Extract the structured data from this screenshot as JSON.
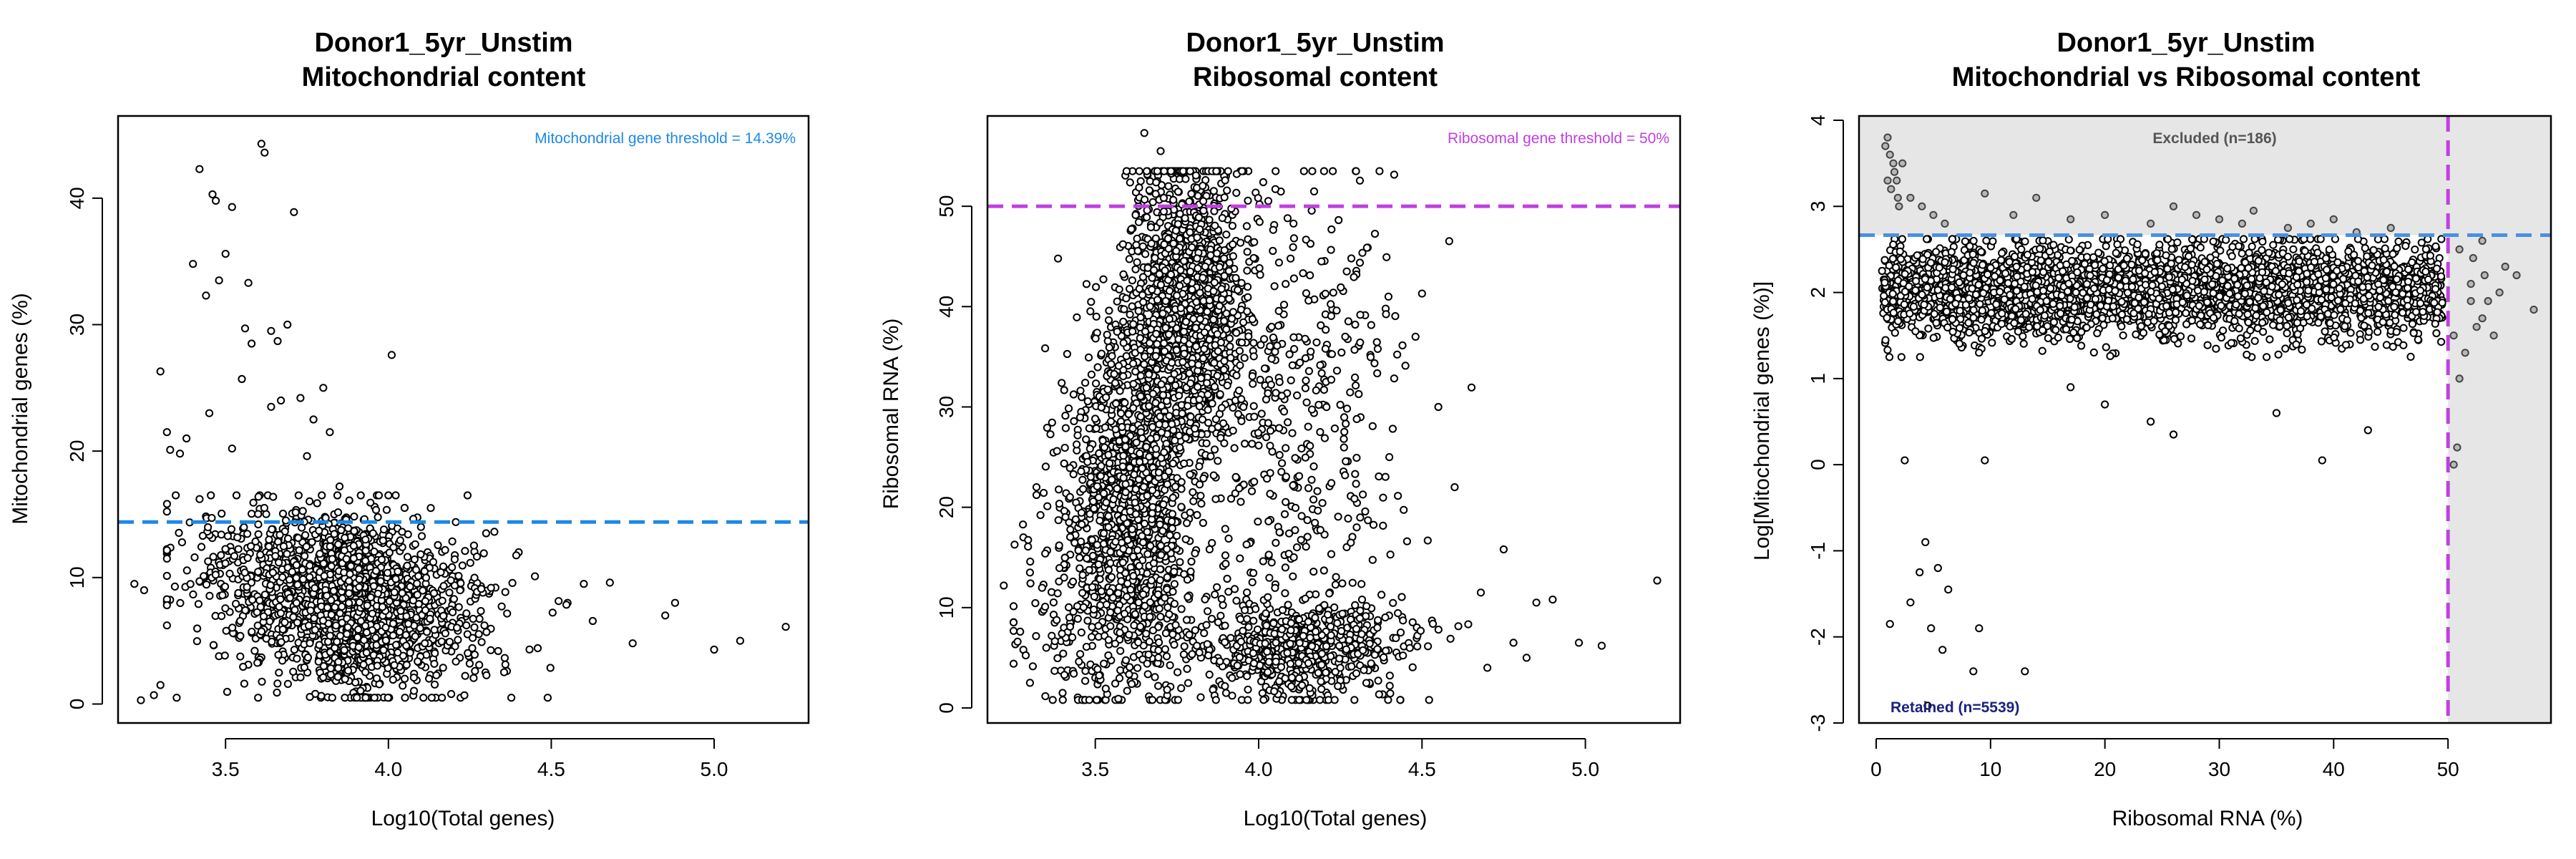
{
  "colors": {
    "mito_threshold": "#1E88E5",
    "ribo_threshold": "#C040E0",
    "combined_mito_threshold": "#4A90E2",
    "excluded_shade": "#e6e6e6",
    "retained_text": "#1a237e",
    "excluded_text": "#555555",
    "point": "#000000"
  },
  "chart_data": [
    {
      "type": "scatter",
      "title_line1": "Donor1_5yr_Unstim",
      "title_line2": "Mitochondrial content",
      "xlabel": "Log10(Total genes)",
      "ylabel": "Mitochondrial genes (%)",
      "xlim": [
        3.17,
        5.29
      ],
      "ylim": [
        -1.5,
        46.5
      ],
      "xticks": [
        3.5,
        4.0,
        4.5,
        5.0
      ],
      "xtick_labels": [
        "3.5",
        "4.0",
        "4.5",
        "5.0"
      ],
      "yticks": [
        0,
        10,
        20,
        30,
        40
      ],
      "ytick_labels": [
        "0",
        "10",
        "20",
        "30",
        "40"
      ],
      "threshold": {
        "axis": "y",
        "value": 14.39,
        "label": "Mitochondrial gene threshold = 14.39%"
      },
      "points": [
        [
          3.22,
          9.5
        ],
        [
          3.24,
          0.3
        ],
        [
          3.28,
          0.7
        ],
        [
          3.3,
          26.3
        ],
        [
          3.32,
          21.5
        ],
        [
          3.33,
          20.1
        ],
        [
          3.35,
          0.5
        ],
        [
          3.36,
          19.8
        ],
        [
          3.38,
          21.0
        ],
        [
          3.4,
          34.8
        ],
        [
          3.42,
          42.3
        ],
        [
          3.44,
          32.3
        ],
        [
          3.45,
          23.0
        ],
        [
          3.46,
          40.3
        ],
        [
          3.47,
          39.8
        ],
        [
          3.48,
          33.5
        ],
        [
          3.5,
          35.6
        ],
        [
          3.52,
          39.3
        ],
        [
          3.52,
          20.2
        ],
        [
          3.55,
          25.7
        ],
        [
          3.56,
          29.7
        ],
        [
          3.57,
          33.3
        ],
        [
          3.58,
          28.5
        ],
        [
          3.61,
          44.3
        ],
        [
          3.62,
          43.6
        ],
        [
          3.64,
          29.5
        ],
        [
          3.64,
          23.5
        ],
        [
          3.66,
          28.7
        ],
        [
          3.67,
          24.0
        ],
        [
          3.69,
          30.0
        ],
        [
          3.71,
          38.9
        ],
        [
          3.73,
          24.2
        ],
        [
          3.75,
          19.6
        ],
        [
          3.77,
          22.5
        ],
        [
          3.8,
          25.0
        ],
        [
          3.82,
          21.5
        ],
        [
          3.85,
          17.2
        ],
        [
          3.88,
          16.1
        ],
        [
          4.01,
          27.6
        ],
        [
          4.0,
          16.5
        ],
        [
          4.1,
          14.0
        ],
        [
          4.13,
          15.5
        ],
        [
          4.3,
          13.5
        ],
        [
          4.45,
          10.1
        ],
        [
          4.6,
          9.5
        ],
        [
          4.68,
          9.6
        ],
        [
          4.75,
          4.8
        ],
        [
          4.85,
          7.0
        ],
        [
          4.88,
          8.0
        ],
        [
          5.0,
          4.3
        ],
        [
          5.08,
          5.0
        ],
        [
          5.22,
          6.1
        ],
        [
          4.4,
          12.0
        ],
        [
          4.55,
          8.0
        ],
        [
          3.3,
          1.5
        ],
        [
          3.25,
          9.0
        ],
        [
          3.6,
          0.5
        ],
        [
          3.9,
          1.0
        ],
        [
          4.05,
          2.0
        ]
      ],
      "dense_cluster": {
        "center": [
          3.8,
          8.5
        ],
        "spread": [
          0.22,
          3.2
        ],
        "count": 2300,
        "seed": 11
      }
    },
    {
      "type": "scatter",
      "title_line1": "Donor1_5yr_Unstim",
      "title_line2": "Ribosomal content",
      "xlabel": "Log10(Total genes)",
      "ylabel": "Ribosomal RNA (%)",
      "xlim": [
        3.17,
        5.29
      ],
      "ylim": [
        -1.5,
        59.0
      ],
      "xticks": [
        3.5,
        4.0,
        4.5,
        5.0
      ],
      "xtick_labels": [
        "3.5",
        "4.0",
        "4.5",
        "5.0"
      ],
      "yticks": [
        0,
        10,
        20,
        30,
        40,
        50
      ],
      "ytick_labels": [
        "0",
        "10",
        "20",
        "30",
        "40",
        "50"
      ],
      "threshold": {
        "axis": "y",
        "value": 50,
        "label": "Ribosomal gene threshold = 50%"
      },
      "points": [
        [
          3.22,
          12.2
        ],
        [
          3.28,
          5.8
        ],
        [
          3.3,
          13.5
        ],
        [
          3.35,
          6.0
        ],
        [
          3.65,
          57.3
        ],
        [
          3.7,
          55.5
        ],
        [
          3.9,
          53.0
        ],
        [
          4.5,
          41.3
        ],
        [
          4.48,
          37.0
        ],
        [
          4.6,
          22.0
        ],
        [
          4.68,
          11.5
        ],
        [
          4.75,
          15.8
        ],
        [
          4.78,
          6.5
        ],
        [
          4.82,
          5.0
        ],
        [
          4.85,
          10.5
        ],
        [
          4.9,
          10.8
        ],
        [
          4.98,
          6.5
        ],
        [
          5.05,
          6.2
        ],
        [
          5.22,
          12.7
        ],
        [
          4.7,
          4.0
        ],
        [
          4.55,
          30.0
        ],
        [
          4.4,
          25.0
        ],
        [
          4.3,
          18.0
        ],
        [
          3.3,
          2.5
        ],
        [
          3.4,
          1.5
        ],
        [
          3.5,
          3.0
        ],
        [
          3.28,
          17.0
        ],
        [
          3.32,
          22.0
        ]
      ],
      "clusters": [
        {
          "center": [
            3.78,
            40.0
          ],
          "spread": [
            0.09,
            7.5
          ],
          "count": 1300,
          "seed": 21
        },
        {
          "center": [
            3.6,
            22.0
          ],
          "spread": [
            0.09,
            8.0
          ],
          "count": 1100,
          "seed": 22
        },
        {
          "center": [
            3.55,
            9.0
          ],
          "spread": [
            0.14,
            5.0
          ],
          "count": 300,
          "seed": 23
        },
        {
          "center": [
            4.12,
            6.0
          ],
          "spread": [
            0.16,
            2.6
          ],
          "count": 650,
          "seed": 24
        },
        {
          "center": [
            4.1,
            30.0
          ],
          "spread": [
            0.17,
            12.0
          ],
          "count": 450,
          "seed": 25
        }
      ]
    },
    {
      "type": "scatter",
      "title_line1": "Donor1_5yr_Unstim",
      "title_line2": "Mitochondrial vs Ribosomal content",
      "xlabel": "Ribosomal RNA (%)",
      "ylabel": "Log[Mitochondrial genes (%)]",
      "xlim": [
        -1.5,
        59.0
      ],
      "ylim": [
        -3.0,
        4.05
      ],
      "xticks": [
        0,
        10,
        20,
        30,
        40,
        50
      ],
      "xtick_labels": [
        "0",
        "10",
        "20",
        "30",
        "40",
        "50"
      ],
      "yticks": [
        -3,
        -2,
        -1,
        0,
        1,
        2,
        3,
        4
      ],
      "ytick_labels": [
        "-3",
        "-2",
        "-1",
        "0",
        "1",
        "2",
        "3",
        "4"
      ],
      "hline": 2.666,
      "vline": 50,
      "excluded_label": "Excluded (n=186)",
      "retained_label": "Retained (n=5539)",
      "points": [
        [
          0.8,
          3.7
        ],
        [
          1.0,
          3.8
        ],
        [
          1.2,
          3.6
        ],
        [
          1.5,
          3.5
        ],
        [
          1.6,
          3.4
        ],
        [
          1.8,
          3.3
        ],
        [
          1.9,
          3.1
        ],
        [
          2.0,
          3.0
        ],
        [
          1.0,
          3.3
        ],
        [
          1.3,
          3.2
        ],
        [
          2.3,
          3.5
        ],
        [
          3.0,
          3.1
        ],
        [
          4.0,
          3.0
        ],
        [
          5.0,
          2.9
        ],
        [
          6.0,
          2.8
        ],
        [
          9.5,
          3.15
        ],
        [
          12,
          2.9
        ],
        [
          14,
          3.1
        ],
        [
          17,
          2.85
        ],
        [
          20,
          2.9
        ],
        [
          24,
          2.8
        ],
        [
          26,
          3.0
        ],
        [
          28,
          2.9
        ],
        [
          30,
          2.85
        ],
        [
          32,
          2.8
        ],
        [
          33,
          2.95
        ],
        [
          36,
          2.75
        ],
        [
          38,
          2.8
        ],
        [
          40,
          2.85
        ],
        [
          42,
          2.7
        ],
        [
          45,
          2.75
        ],
        [
          1.5,
          1.9
        ],
        [
          2.5,
          0.05
        ],
        [
          3.0,
          -1.6
        ],
        [
          1.2,
          -1.85
        ],
        [
          3.8,
          -1.25
        ],
        [
          4.3,
          -0.9
        ],
        [
          4.8,
          -1.9
        ],
        [
          5.4,
          -1.2
        ],
        [
          5.8,
          -2.15
        ],
        [
          6.3,
          -1.45
        ],
        [
          8.5,
          -2.4
        ],
        [
          9.0,
          -1.9
        ],
        [
          13,
          -2.4
        ],
        [
          9.5,
          0.05
        ],
        [
          4.5,
          -2.8
        ],
        [
          39,
          0.05
        ],
        [
          43,
          0.4
        ],
        [
          24,
          0.5
        ],
        [
          26,
          0.35
        ],
        [
          35,
          0.6
        ],
        [
          17,
          0.9
        ],
        [
          20,
          0.7
        ],
        [
          50.5,
          0.0
        ],
        [
          50.8,
          0.2
        ],
        [
          51,
          2.5
        ],
        [
          52,
          2.1
        ],
        [
          52.5,
          1.6
        ],
        [
          53,
          2.6
        ],
        [
          53.5,
          1.9
        ],
        [
          54,
          1.5
        ],
        [
          55,
          2.3
        ],
        [
          56,
          2.2
        ],
        [
          57.5,
          1.8
        ],
        [
          51.5,
          1.3
        ],
        [
          52,
          1.9
        ],
        [
          53,
          1.7
        ],
        [
          54.5,
          2.0
        ],
        [
          51,
          1.0
        ],
        [
          50.5,
          1.5
        ],
        [
          52.2,
          2.4
        ],
        [
          53.2,
          2.2
        ]
      ],
      "dense_band": {
        "xrange": [
          0.5,
          49.5
        ],
        "ycenter": 2.02,
        "yspread": 0.27,
        "count": 3200,
        "seed": 31
      }
    }
  ]
}
